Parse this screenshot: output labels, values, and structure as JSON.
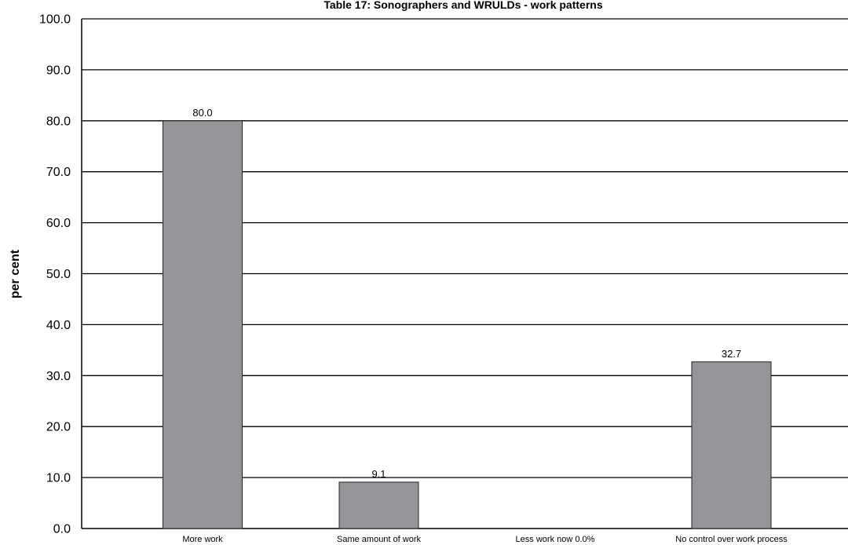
{
  "chart_data": {
    "type": "bar",
    "title": "Table 17: Sonographers and WRULDs - work patterns",
    "ylabel": "per cent",
    "xlabel": "",
    "categories": [
      "More work",
      "Same amount of work",
      "Less work now 0.0%",
      "No control over work process"
    ],
    "values": [
      80.0,
      9.1,
      0.0,
      32.7
    ],
    "data_labels": [
      "80.0",
      "9.1",
      "",
      "32.7"
    ],
    "yticks": [
      "0.0",
      "10.0",
      "20.0",
      "30.0",
      "40.0",
      "50.0",
      "60.0",
      "70.0",
      "80.0",
      "90.0",
      "100.0"
    ],
    "ylim": [
      0,
      100
    ],
    "grid": true,
    "legend": "none",
    "colors": {
      "bar": "#939598",
      "grid": "#000000"
    }
  }
}
